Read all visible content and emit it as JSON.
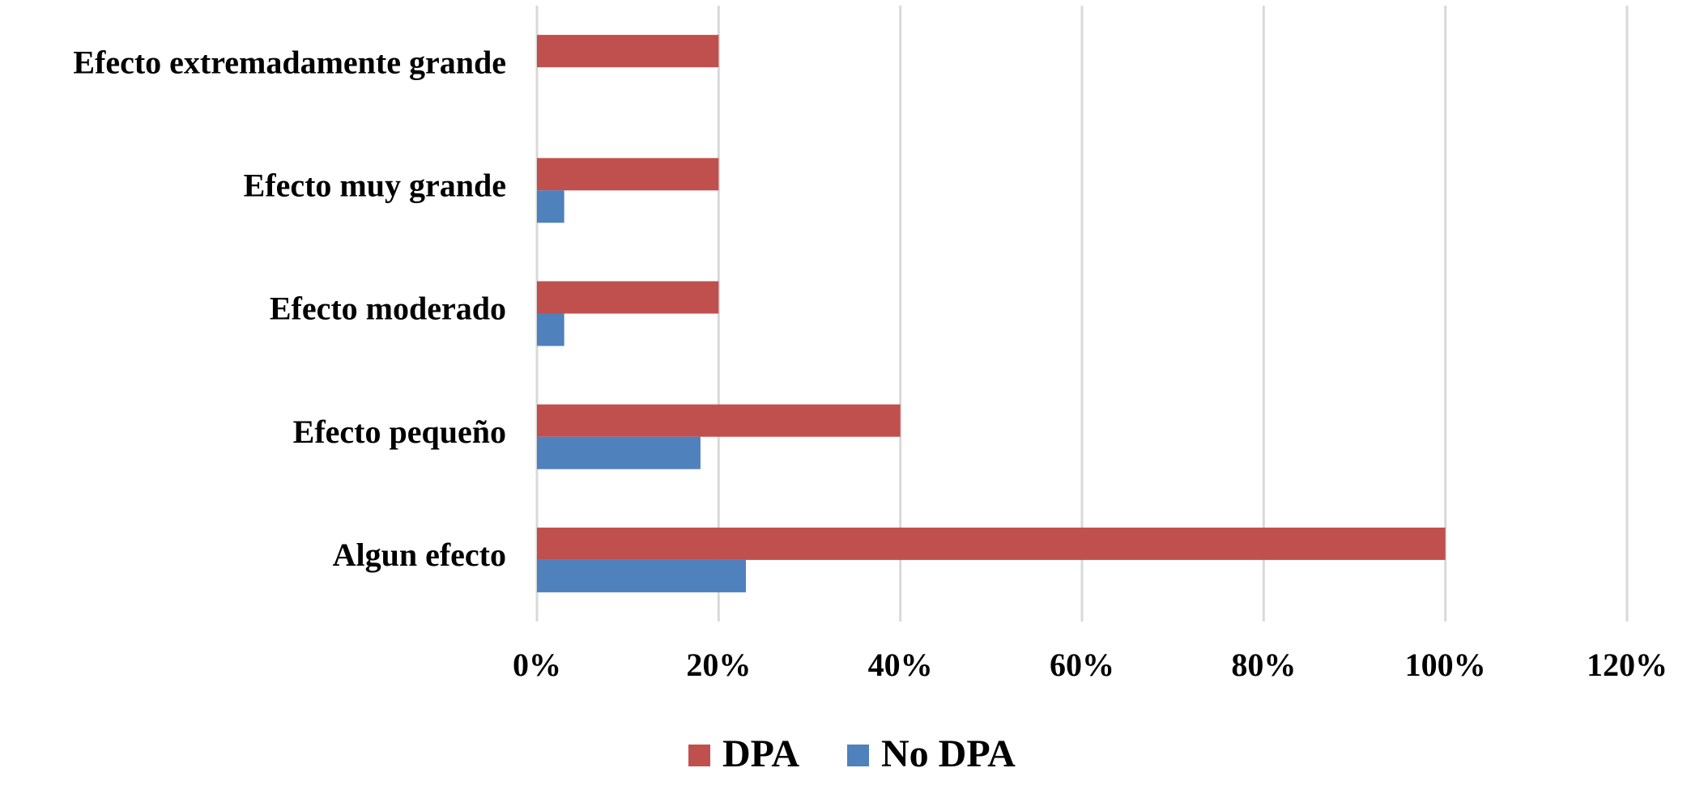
{
  "chart_data": {
    "type": "hbar",
    "categories": [
      "Algun efecto",
      "Efecto pequeño",
      "Efecto moderado",
      "Efecto muy grande",
      "Efecto extremadamente grande"
    ],
    "series": [
      {
        "name": "DPA",
        "color": "#c0504d",
        "values": [
          100,
          40,
          20,
          20,
          20
        ]
      },
      {
        "name": "No DPA",
        "color": "#4f81bd",
        "values": [
          23,
          18,
          3,
          3,
          0
        ]
      }
    ],
    "xlim": [
      0,
      120
    ],
    "xticks": [
      {
        "value": 0,
        "label": "0%"
      },
      {
        "value": 20,
        "label": "20%"
      },
      {
        "value": 40,
        "label": "40%"
      },
      {
        "value": 60,
        "label": "60%"
      },
      {
        "value": 80,
        "label": "80%"
      },
      {
        "value": 100,
        "label": "100%"
      },
      {
        "value": 120,
        "label": "120%"
      }
    ],
    "grid": true,
    "legend": "bottom"
  }
}
